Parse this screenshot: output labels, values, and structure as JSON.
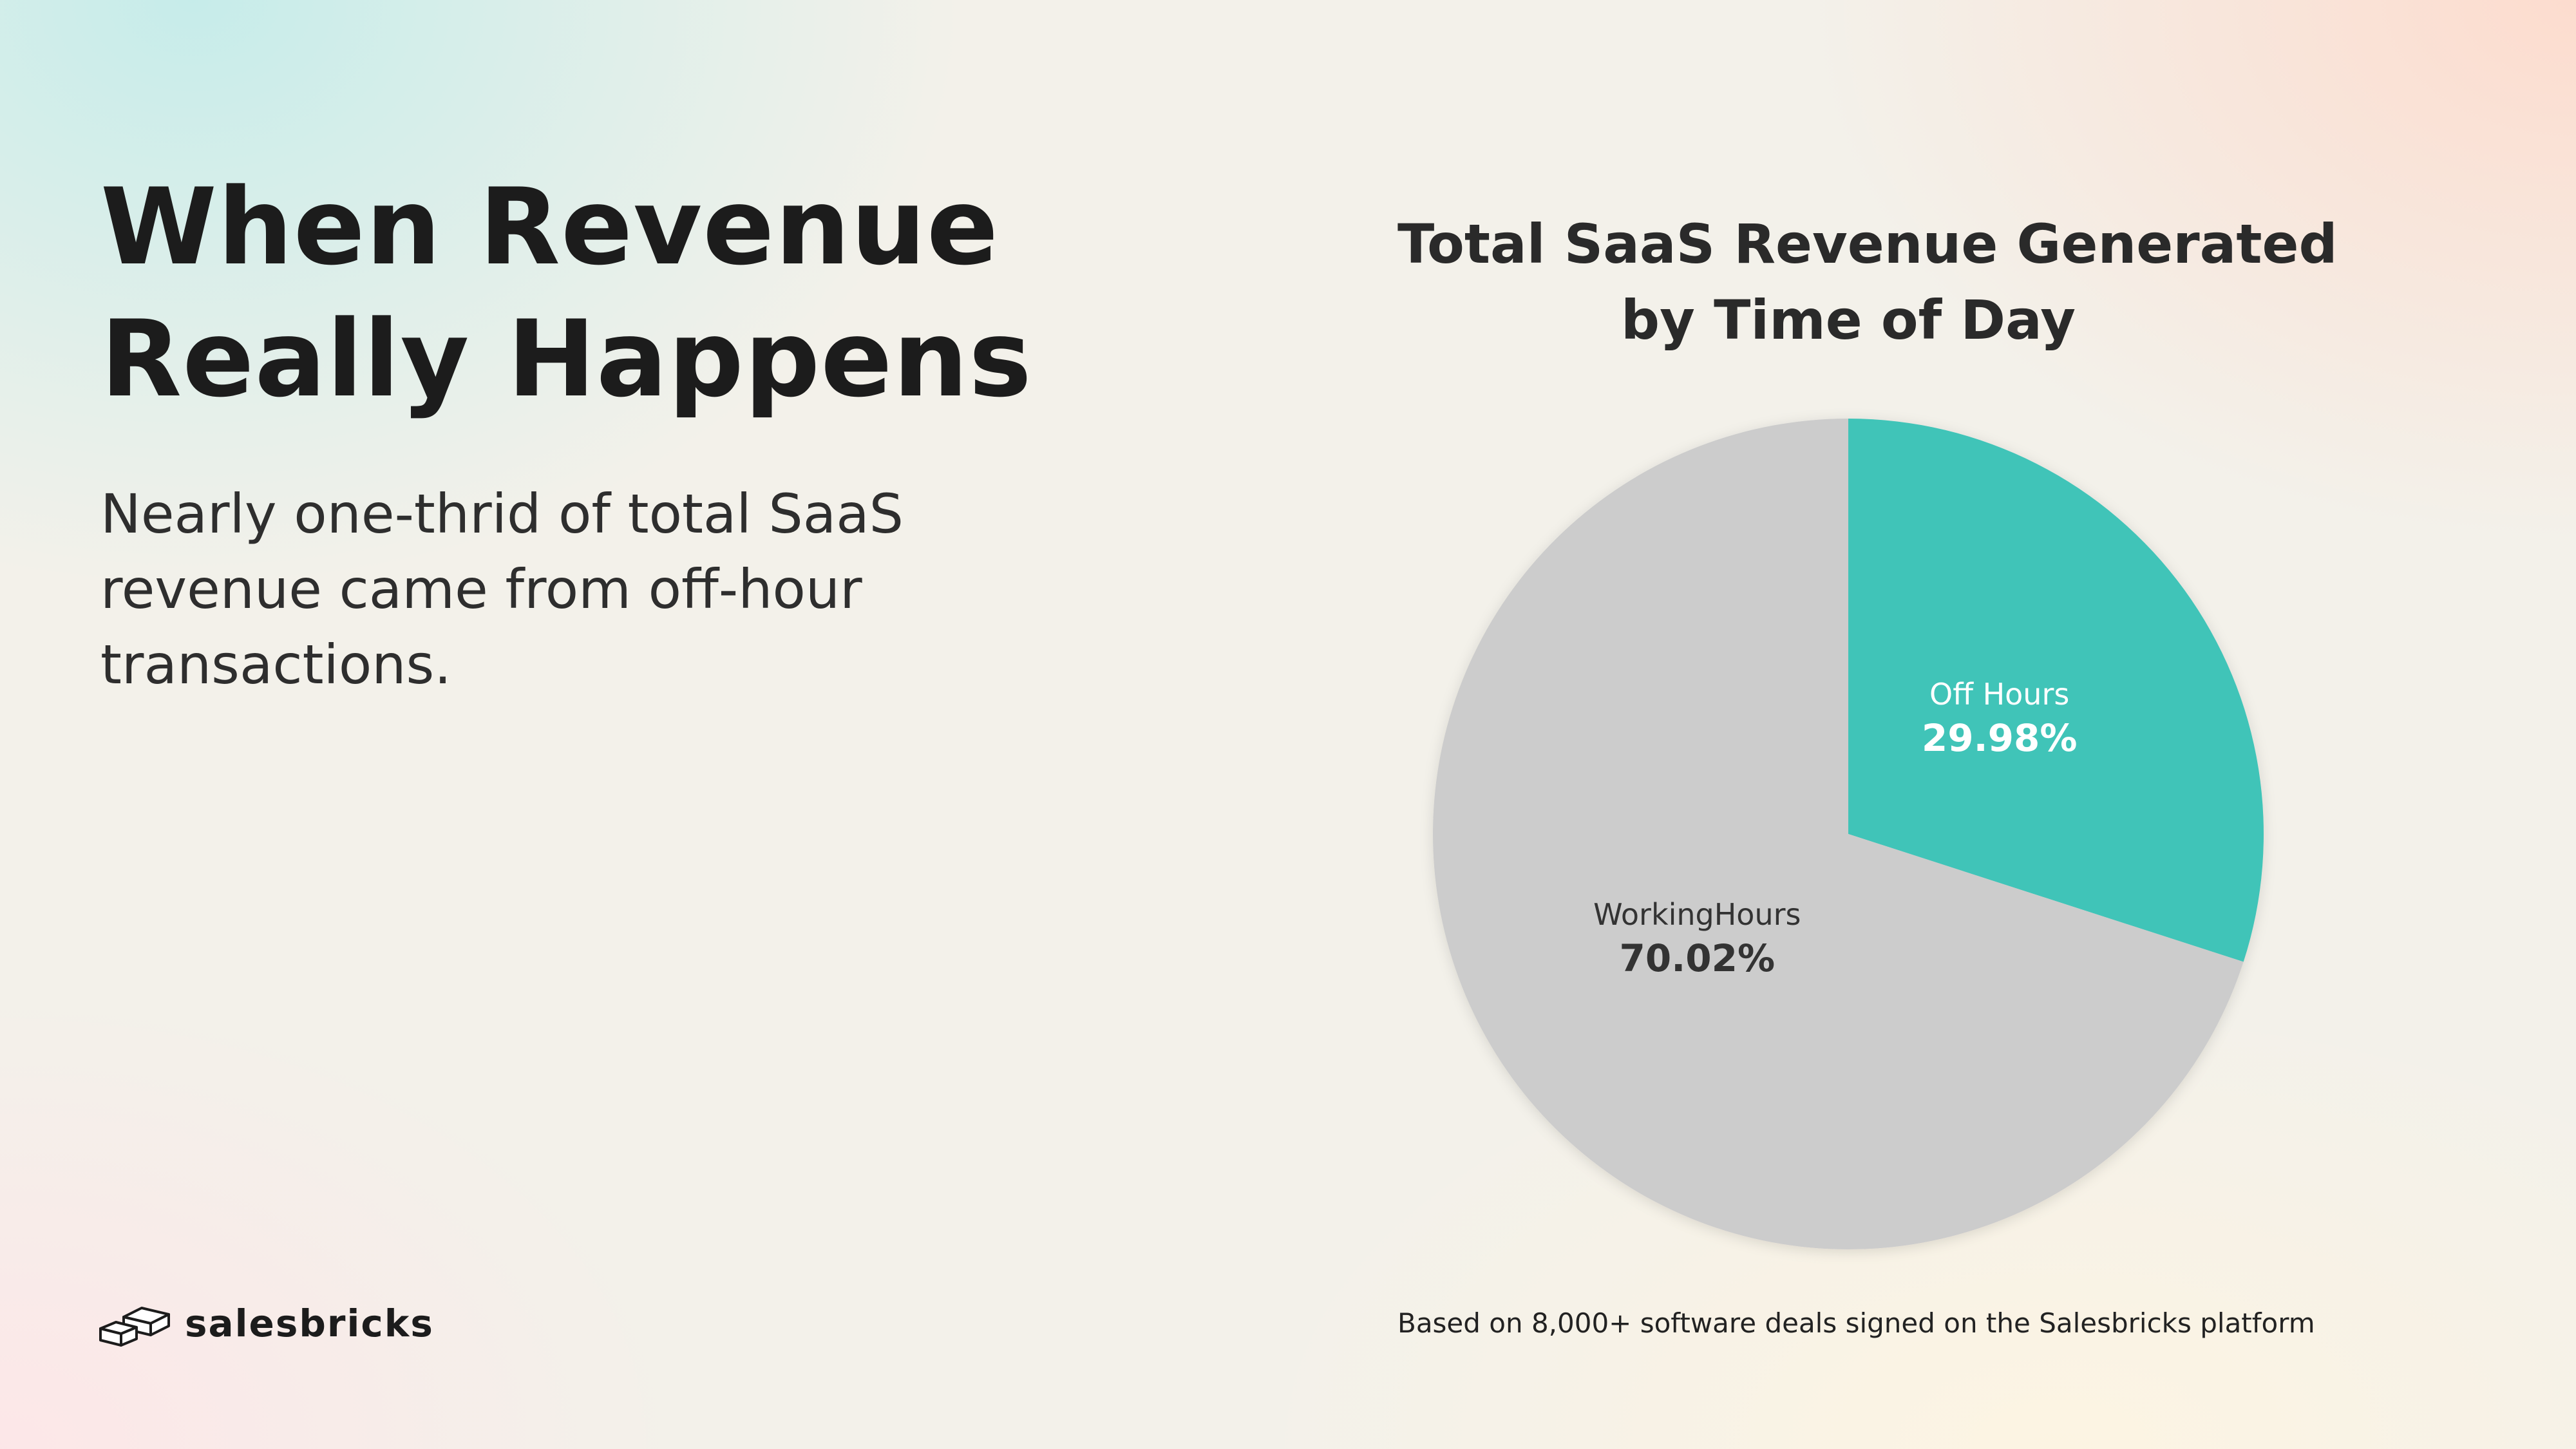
{
  "headline": {
    "line1": "When Revenue",
    "line2": "Really Happens"
  },
  "subtext": "Nearly one-thrid of total SaaS revenue came from off-hour transactions.",
  "brand": {
    "name": "salesbricks",
    "icon": "bricks-logo-icon"
  },
  "footnote": "Based on 8,000+ software deals signed on the Salesbricks platform",
  "chart_data": {
    "type": "pie",
    "title": "Total SaaS Revenue Generated by Time of Day",
    "title_lines": [
      "Total SaaS Revenue Generated",
      "by Time of Day"
    ],
    "slices": [
      {
        "name": "Off Hours",
        "value": 29.98,
        "label": "29.98%",
        "color": "#40c4b8",
        "text_color": "#ffffff"
      },
      {
        "name": "WorkingHours",
        "value": 70.02,
        "label": "70.02%",
        "color": "#cccccc",
        "text_color": "#333333"
      }
    ],
    "start": "12 o'clock, clockwise"
  }
}
